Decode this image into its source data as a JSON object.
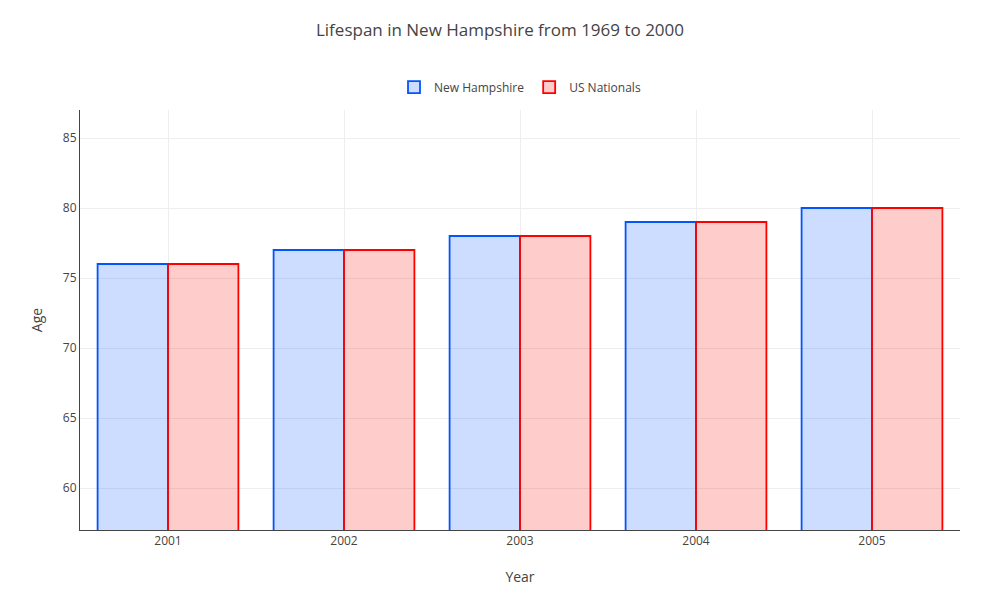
{
  "chart_data": {
    "type": "bar",
    "title": "Lifespan in New Hampshire from 1969 to 2000",
    "xlabel": "Year",
    "ylabel": "Age",
    "categories": [
      "2001",
      "2002",
      "2003",
      "2004",
      "2005"
    ],
    "series": [
      {
        "name": "New Hampshire",
        "color": "#0055ff",
        "values": [
          76.0,
          77.0,
          78.0,
          79.0,
          80.0
        ]
      },
      {
        "name": "US Nationals",
        "color": "#ff0000",
        "values": [
          76.0,
          77.0,
          78.0,
          79.0,
          80.0
        ]
      }
    ],
    "ylim": [
      57,
      87
    ],
    "yticks": [
      60,
      65,
      70,
      75,
      80,
      85
    ],
    "grid": true,
    "legend": "top"
  }
}
